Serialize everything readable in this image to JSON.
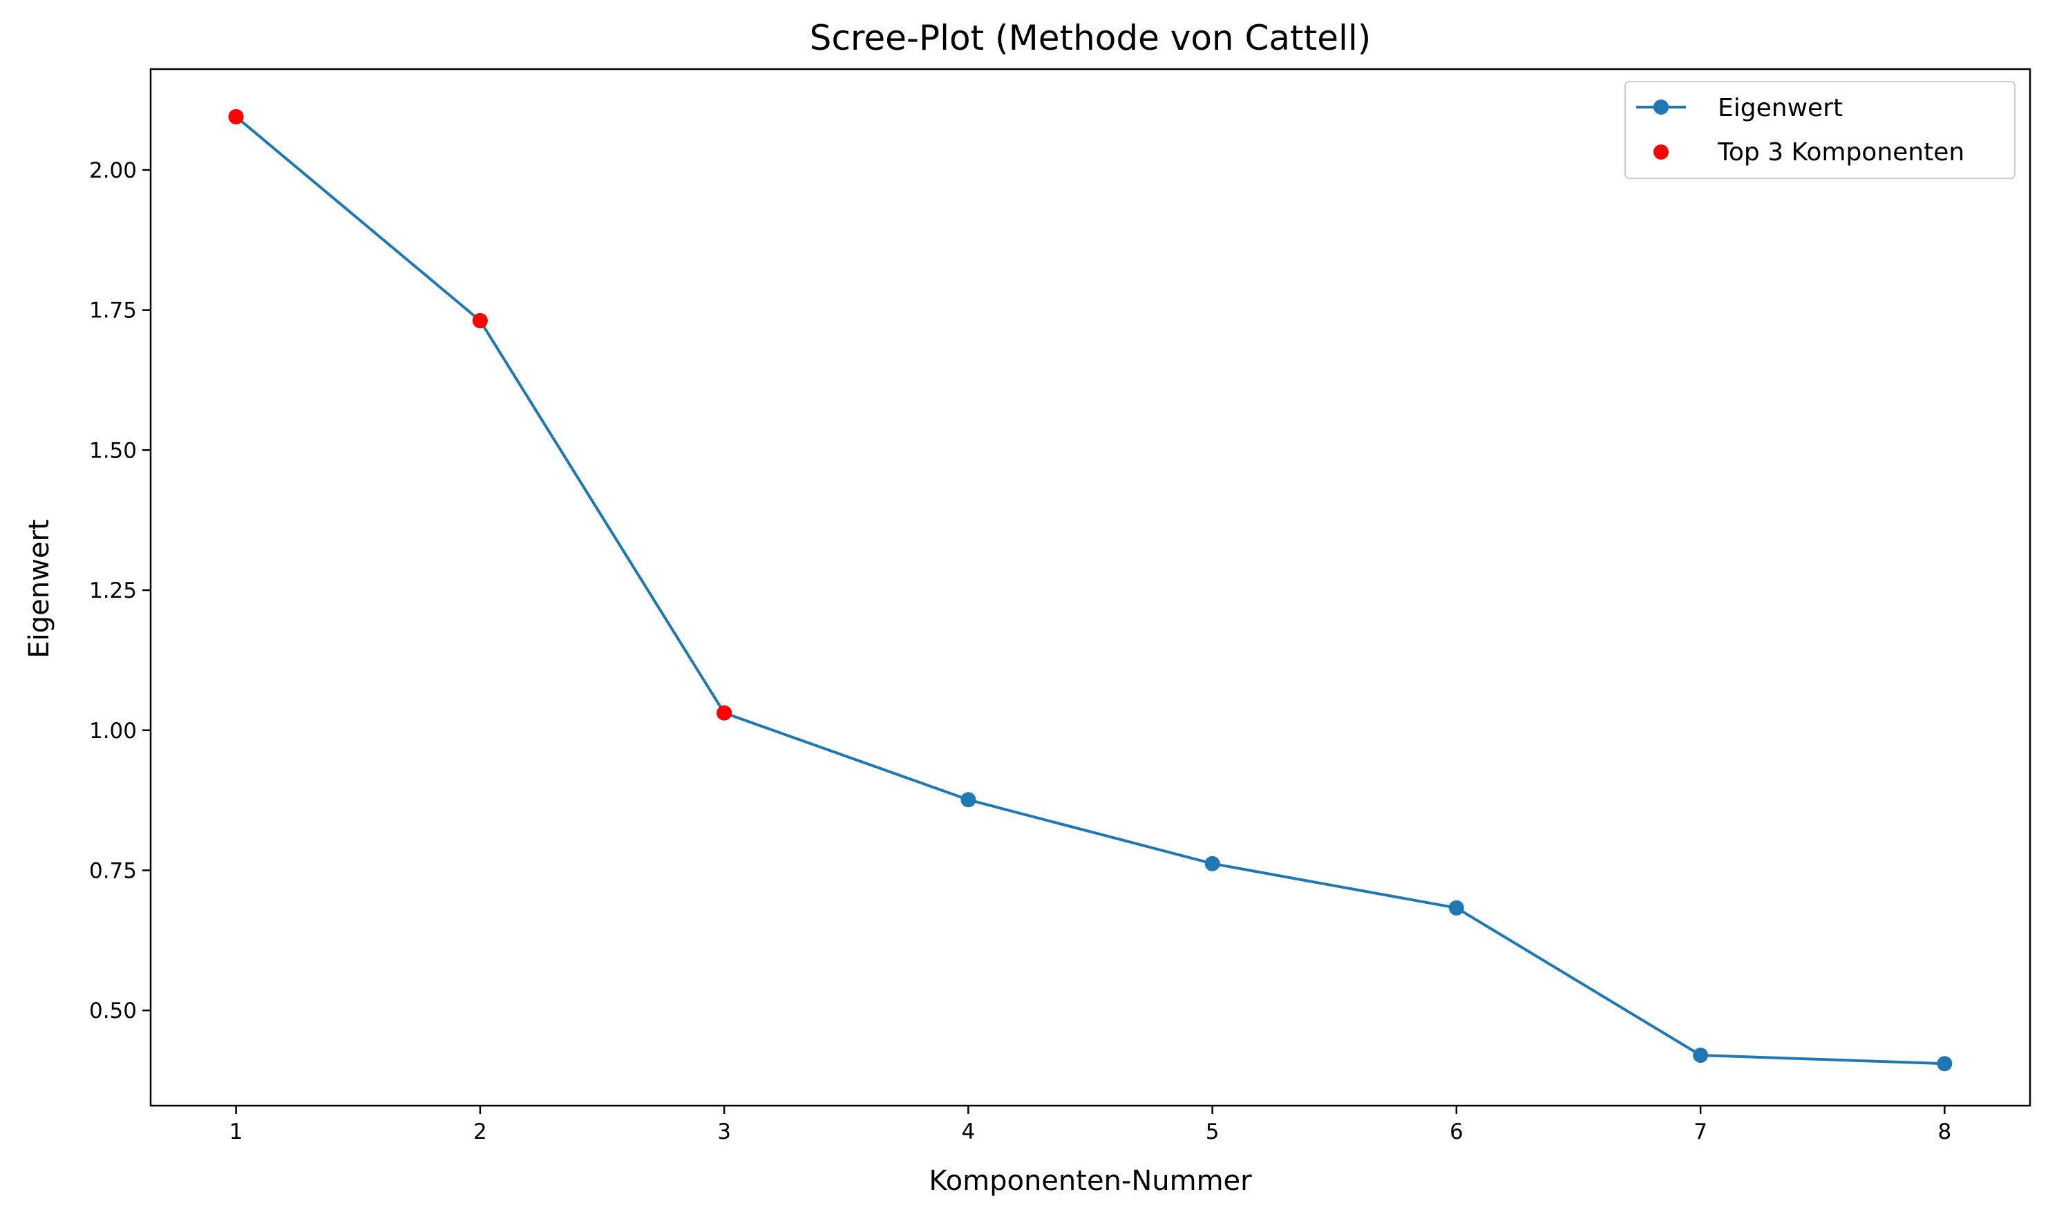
{
  "chart_data": {
    "type": "line",
    "title": "Scree-Plot (Methode von Cattell)",
    "xlabel": "Komponenten-Nummer",
    "ylabel": "Eigenwert",
    "x": [
      1,
      2,
      3,
      4,
      5,
      6,
      7,
      8
    ],
    "xticks": [
      "1",
      "2",
      "3",
      "4",
      "5",
      "6",
      "7",
      "8"
    ],
    "yticks": [
      "0.50",
      "0.75",
      "1.00",
      "1.25",
      "1.50",
      "1.75",
      "2.00"
    ],
    "ytick_values": [
      0.5,
      0.75,
      1.0,
      1.25,
      1.5,
      1.75,
      2.0
    ],
    "xlim": [
      0.65,
      8.35
    ],
    "ylim": [
      0.33,
      2.18
    ],
    "grid": false,
    "legend_position": "top-right",
    "series": [
      {
        "name": "Eigenwert",
        "kind": "line-with-markers",
        "color": "#1f77b4",
        "values": [
          2.095,
          1.731,
          1.031,
          0.876,
          0.762,
          0.683,
          0.42,
          0.405
        ]
      },
      {
        "name": "Top 3 Komponenten",
        "kind": "scatter",
        "color": "#ff0000",
        "x": [
          1,
          2,
          3
        ],
        "values": [
          2.095,
          1.731,
          1.031
        ]
      }
    ]
  }
}
